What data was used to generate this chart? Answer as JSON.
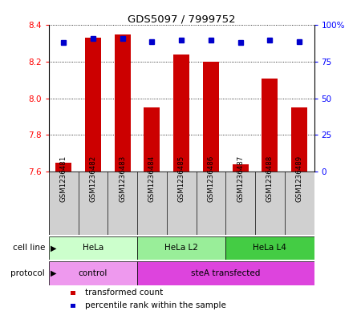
{
  "title": "GDS5097 / 7999752",
  "samples": [
    "GSM1236481",
    "GSM1236482",
    "GSM1236483",
    "GSM1236484",
    "GSM1236485",
    "GSM1236486",
    "GSM1236487",
    "GSM1236488",
    "GSM1236489"
  ],
  "bar_values": [
    7.65,
    8.33,
    8.35,
    7.95,
    8.24,
    8.2,
    7.64,
    8.11,
    7.95
  ],
  "bar_base": 7.6,
  "percentile_values": [
    88,
    91,
    91,
    89,
    90,
    90,
    88,
    90,
    89
  ],
  "ylim_left": [
    7.6,
    8.4
  ],
  "ylim_right": [
    0,
    100
  ],
  "yticks_left": [
    7.6,
    7.8,
    8.0,
    8.2,
    8.4
  ],
  "yticks_right": [
    0,
    25,
    50,
    75,
    100
  ],
  "ytick_labels_right": [
    "0",
    "25",
    "50",
    "75",
    "100%"
  ],
  "bar_color": "#cc0000",
  "percentile_color": "#0000cc",
  "plot_bg": "#ffffff",
  "sample_box_color": "#cccccc",
  "cell_line_groups": [
    {
      "label": "HeLa",
      "start": 0,
      "end": 3,
      "color": "#ccffcc"
    },
    {
      "label": "HeLa L2",
      "start": 3,
      "end": 6,
      "color": "#99ee99"
    },
    {
      "label": "HeLa L4",
      "start": 6,
      "end": 9,
      "color": "#44cc44"
    }
  ],
  "protocol_groups": [
    {
      "label": "control",
      "start": 0,
      "end": 3,
      "color": "#ee99ee"
    },
    {
      "label": "steA transfected",
      "start": 3,
      "end": 9,
      "color": "#dd44dd"
    }
  ],
  "legend_items": [
    {
      "label": "transformed count",
      "color": "#cc0000"
    },
    {
      "label": "percentile rank within the sample",
      "color": "#0000cc"
    }
  ]
}
